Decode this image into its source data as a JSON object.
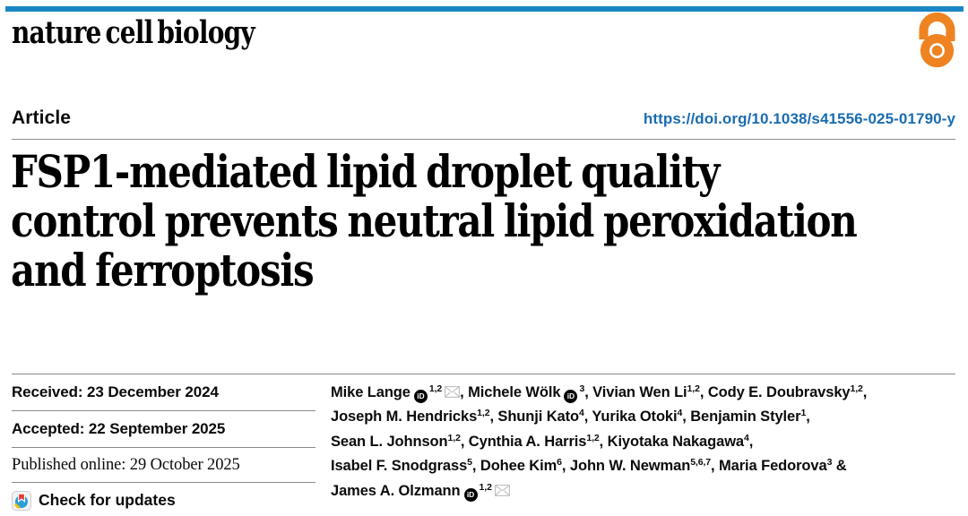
{
  "masthead": {
    "journal": "nature cell biology"
  },
  "header": {
    "article_label": "Article",
    "doi": "https://doi.org/10.1038/s41556-025-01790-y"
  },
  "title": {
    "lines": [
      "FSP1-mediated lipid droplet quality",
      "control prevents neutral lipid peroxidation",
      "and ferroptosis"
    ]
  },
  "dates": {
    "received": "Received: 23 December 2024",
    "accepted": "Accepted: 22 September 2025",
    "published": "Published online: 29 October 2025"
  },
  "check_updates": {
    "label": "Check for updates"
  },
  "icons": {
    "open_access": "open-access-icon",
    "orcid": "orcid-icon",
    "orcid_label": "iD",
    "envelope": "email-icon",
    "crossmark": "crossmark-icon"
  },
  "colors": {
    "top_bar": "#1b86c5",
    "doi_link": "#1a6cb1",
    "open_access": "#ef8322",
    "rule": "#8a8a8a",
    "crossmark_blue": "#2b9fd8",
    "crossmark_red": "#e23c2e",
    "crossmark_yellow": "#f2c200"
  },
  "authors": {
    "lines": [
      [
        {
          "text": "Mike Lange",
          "orcid": true,
          "sup": "1,2",
          "envelope": true,
          "after": ", "
        },
        {
          "text": "Michele Wölk",
          "orcid": true,
          "sup": "3",
          "after": ", "
        },
        {
          "text": "Vivian Wen Li",
          "sup": "1,2",
          "after": ", "
        },
        {
          "text": "Cody E. Doubravsky",
          "sup": "1,2",
          "after": ","
        }
      ],
      [
        {
          "text": "Joseph M. Hendricks",
          "sup": "1,2",
          "after": ", "
        },
        {
          "text": "Shunji Kato",
          "sup": "4",
          "after": ", "
        },
        {
          "text": "Yurika Otoki",
          "sup": "4",
          "after": ", "
        },
        {
          "text": "Benjamin Styler",
          "sup": "1",
          "after": ","
        }
      ],
      [
        {
          "text": "Sean L. Johnson",
          "sup": "1,2",
          "after": ", "
        },
        {
          "text": "Cynthia A. Harris",
          "sup": "1,2",
          "after": ", "
        },
        {
          "text": "Kiyotaka Nakagawa",
          "sup": "4",
          "after": ","
        }
      ],
      [
        {
          "text": "Isabel F. Snodgrass",
          "sup": "5",
          "after": ", "
        },
        {
          "text": "Dohee Kim",
          "sup": "6",
          "after": ", "
        },
        {
          "text": "John W. Newman",
          "sup": "5,6,7",
          "after": ", "
        },
        {
          "text": "Maria Fedorova",
          "sup": "3",
          "after": " &"
        }
      ],
      [
        {
          "text": "James A. Olzmann",
          "orcid": true,
          "sup": "1,2",
          "envelope": true
        }
      ]
    ]
  }
}
